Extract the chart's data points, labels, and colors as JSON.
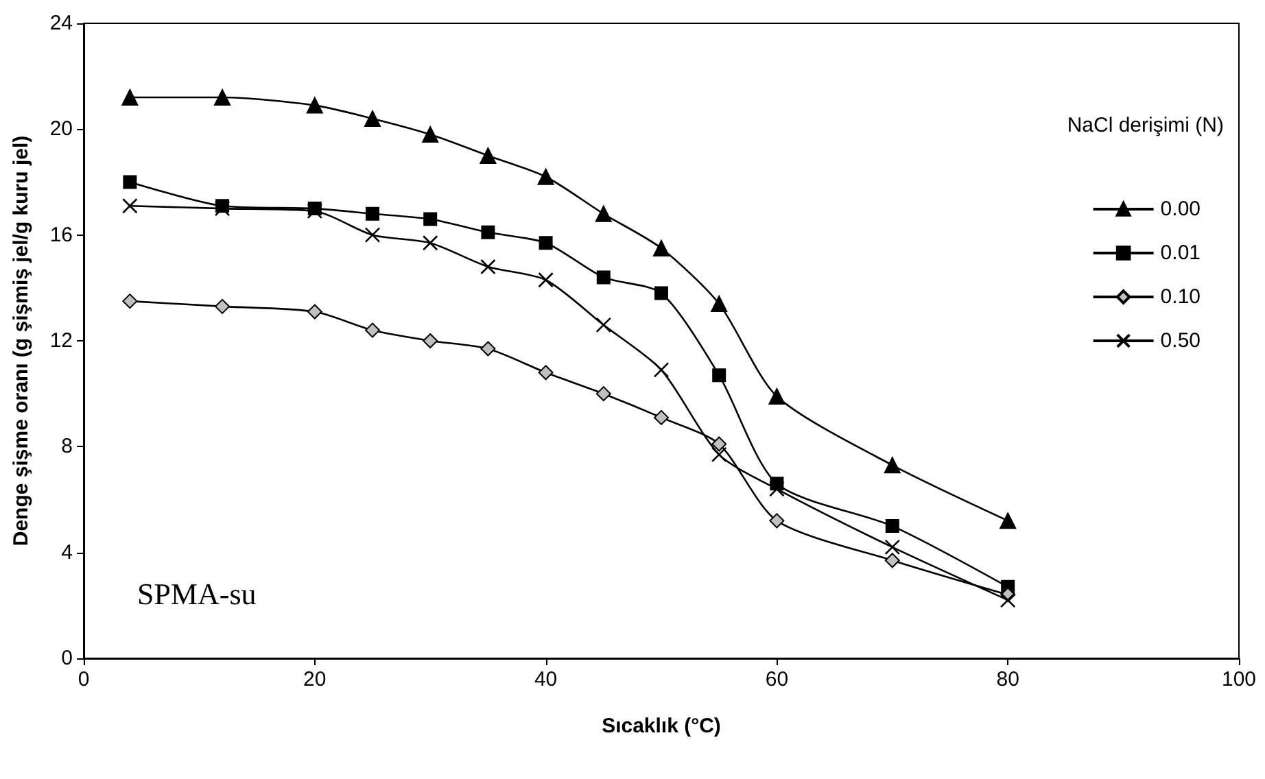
{
  "chart_data": {
    "type": "line",
    "xlabel": "Sıcaklık (°C)",
    "ylabel": "Denge şişme oranı (g şişmiş jel/g kuru jel)",
    "legend_title": "NaCl derişimi (N)",
    "annotations": [
      "SPMA-su"
    ],
    "x": [
      4,
      12,
      20,
      25,
      30,
      35,
      40,
      45,
      50,
      55,
      60,
      70,
      80
    ],
    "series": [
      {
        "name": "0.00",
        "color": "#000000",
        "marker": "triangle",
        "values": [
          21.2,
          21.2,
          20.9,
          20.4,
          19.8,
          19.0,
          18.2,
          16.8,
          15.5,
          13.4,
          9.9,
          7.3,
          5.2
        ]
      },
      {
        "name": "0.01",
        "color": "#000000",
        "marker": "square",
        "values": [
          18.0,
          17.1,
          17.0,
          16.8,
          16.6,
          16.1,
          15.7,
          14.4,
          13.8,
          10.7,
          6.6,
          5.0,
          2.7
        ]
      },
      {
        "name": "0.10",
        "color": "#c0c0c0",
        "marker": "diamond",
        "values": [
          13.5,
          13.3,
          13.1,
          12.4,
          12.0,
          11.7,
          10.8,
          10.0,
          9.1,
          8.1,
          5.2,
          3.7,
          2.4
        ]
      },
      {
        "name": "0.50",
        "color": "#000000",
        "marker": "cross",
        "values": [
          17.1,
          17.0,
          16.9,
          16.0,
          15.7,
          14.8,
          14.3,
          12.6,
          10.9,
          7.7,
          6.4,
          4.2,
          2.2
        ]
      }
    ],
    "xlim": [
      0,
      100
    ],
    "xticks": [
      0,
      20,
      40,
      60,
      80,
      100
    ],
    "ylim": [
      0,
      24
    ],
    "yticks": [
      0,
      4,
      8,
      12,
      16,
      20,
      24
    ],
    "grid": false,
    "legend": "top right"
  }
}
